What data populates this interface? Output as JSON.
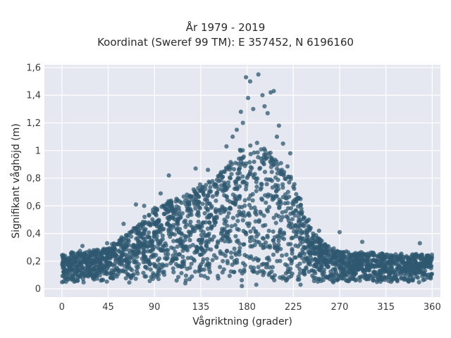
{
  "chart_data": {
    "type": "scatter",
    "title_line1": "År 1979 - 2019",
    "title_line2": "Koordinat (Sweref 99 TM): E 357452, N 6196160",
    "xlabel": "Vågriktning (grader)",
    "ylabel": "Signifikant våghöjd (m)",
    "xlim": [
      -17,
      368
    ],
    "ylim": [
      -0.06,
      1.62
    ],
    "xticks": [
      0,
      45,
      90,
      135,
      180,
      225,
      270,
      315,
      360
    ],
    "xtick_labels": [
      "0",
      "45",
      "90",
      "135",
      "180",
      "225",
      "270",
      "315",
      "360"
    ],
    "yticks": [
      0,
      0.2,
      0.4,
      0.6,
      0.8,
      1.0,
      1.2,
      1.4,
      1.6
    ],
    "ytick_labels": [
      "0",
      "0,2",
      "0,4",
      "0,6",
      "0,8",
      "1",
      "1,2",
      "1,4",
      "1,6"
    ],
    "grid": true,
    "marker_color": "#2f5870",
    "background_color": "#e5e8f0",
    "envelope": {
      "direction_deg": [
        0,
        15,
        30,
        45,
        60,
        75,
        90,
        105,
        120,
        135,
        150,
        165,
        175,
        180,
        190,
        200,
        210,
        220,
        225,
        235,
        245,
        260,
        280,
        300,
        320,
        340,
        360
      ],
      "upper_height_m": [
        0.25,
        0.27,
        0.28,
        0.3,
        0.38,
        0.48,
        0.58,
        0.64,
        0.7,
        0.76,
        0.82,
        0.93,
        1.02,
        1.05,
        1.05,
        1.0,
        0.95,
        0.88,
        0.8,
        0.55,
        0.4,
        0.3,
        0.26,
        0.26,
        0.25,
        0.25,
        0.25
      ],
      "lower_height_m": 0.05
    },
    "outliers": [
      {
        "x": 179,
        "y": 1.53
      },
      {
        "x": 183,
        "y": 1.5
      },
      {
        "x": 191,
        "y": 1.55
      },
      {
        "x": 195,
        "y": 1.4
      },
      {
        "x": 203,
        "y": 1.42
      },
      {
        "x": 206,
        "y": 1.43
      },
      {
        "x": 186,
        "y": 1.3
      },
      {
        "x": 197,
        "y": 1.32
      },
      {
        "x": 200,
        "y": 1.27
      },
      {
        "x": 174,
        "y": 1.28
      },
      {
        "x": 181,
        "y": 1.38
      },
      {
        "x": 176,
        "y": 1.2
      },
      {
        "x": 170,
        "y": 1.15
      },
      {
        "x": 166,
        "y": 1.1
      },
      {
        "x": 211,
        "y": 1.18
      },
      {
        "x": 209,
        "y": 1.1
      },
      {
        "x": 215,
        "y": 1.05
      },
      {
        "x": 222,
        "y": 0.98
      },
      {
        "x": 160,
        "y": 1.03
      },
      {
        "x": 104,
        "y": 0.82
      },
      {
        "x": 96,
        "y": 0.69
      },
      {
        "x": 72,
        "y": 0.61
      },
      {
        "x": 80,
        "y": 0.6
      },
      {
        "x": 60,
        "y": 0.47
      },
      {
        "x": 270,
        "y": 0.41
      },
      {
        "x": 292,
        "y": 0.34
      },
      {
        "x": 348,
        "y": 0.33
      },
      {
        "x": 240,
        "y": 0.5
      },
      {
        "x": 232,
        "y": 0.65
      },
      {
        "x": 250,
        "y": 0.42
      },
      {
        "x": 44,
        "y": 0.33
      },
      {
        "x": 20,
        "y": 0.31
      },
      {
        "x": 130,
        "y": 0.87
      },
      {
        "x": 142,
        "y": 0.86
      },
      {
        "x": 189,
        "y": 0.03
      },
      {
        "x": 175,
        "y": 0.02
      },
      {
        "x": 120,
        "y": 0.04
      },
      {
        "x": 232,
        "y": 0.03
      }
    ]
  }
}
